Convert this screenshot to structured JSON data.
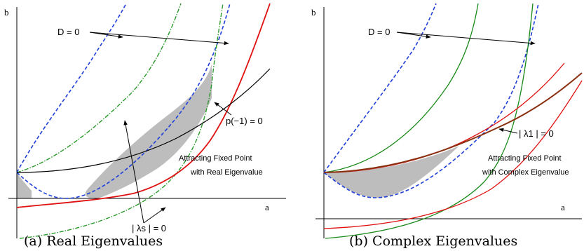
{
  "colors": {
    "dashed_blue": "#1f3fd8",
    "dashdot_green": "#2a9a2a",
    "red": "#e01010",
    "green": "#1a8a1a",
    "brown": "#8a3010",
    "black": "#000000",
    "shade": "#bdbdbd"
  },
  "panel_a": {
    "axis_x": "a",
    "axis_y": "b",
    "label_D0": "D = 0",
    "label_p": "p(−1) = 0",
    "label_lambda_s": "| λs | = 0",
    "region_line1": "Attracting Fixed Point",
    "region_line2": "with Real Eigenvalue",
    "caption": "(a) Real Eigenvalues"
  },
  "panel_b": {
    "axis_x": "a",
    "axis_y": "b",
    "label_D0": "D = 0",
    "label_lambda_1": "| λ1 | = 0",
    "region_line1": "Attracting Fixed Point",
    "region_line2": "with Complex Eigenvalue",
    "caption": "(b) Complex Eigenvalues"
  }
}
